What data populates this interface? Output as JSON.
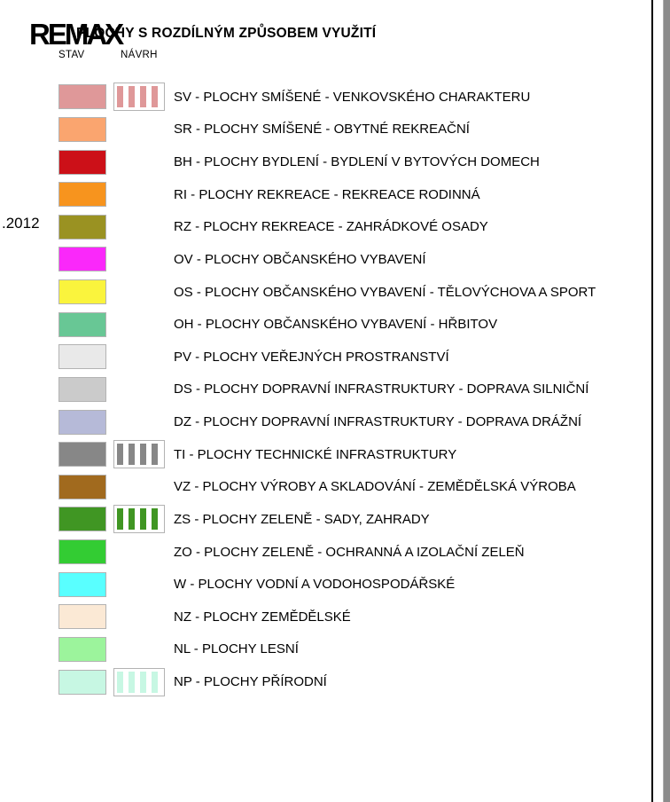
{
  "header": {
    "logo_text": "REMAX",
    "title": "PLOCHY S ROZDÍLNÝM ZPŮSOBEM VYUŽITÍ",
    "column_stav": "STAV",
    "column_navrh": "NÁVRH"
  },
  "side_note": ".2012",
  "legend": {
    "rows": [
      {
        "label": "SV - PLOCHY SMÍŠENÉ - VENKOVSKÉHO CHARAKTERU",
        "color": "#DF9899",
        "navrh_striped": true
      },
      {
        "label": "SR - PLOCHY SMÍŠENÉ -  OBYTNÉ REKREAČNÍ",
        "color": "#FAA56F",
        "navrh_striped": false
      },
      {
        "label": "BH - PLOCHY BYDLENÍ - BYDLENÍ V BYTOVÝCH DOMECH",
        "color": "#CC1018",
        "navrh_striped": false
      },
      {
        "label": "RI - PLOCHY REKREACE - REKREACE RODINNÁ",
        "color": "#F7941E",
        "navrh_striped": false
      },
      {
        "label": "RZ - PLOCHY REKREACE - ZAHRÁDKOVÉ OSADY",
        "color": "#9A9222",
        "navrh_striped": false
      },
      {
        "label": "OV - PLOCHY OBČANSKÉHO VYBAVENÍ",
        "color": "#FA28FA",
        "navrh_striped": false
      },
      {
        "label": "OS - PLOCHY OBČANSKÉHO VYBAVENÍ - TĚLOVÝCHOVA A SPORT",
        "color": "#FAF43D",
        "navrh_striped": false
      },
      {
        "label": "OH - PLOCHY OBČANSKÉHO VYBAVENÍ - HŘBITOV",
        "color": "#68C795",
        "navrh_striped": false
      },
      {
        "label": "PV - PLOCHY VEŘEJNÝCH PROSTRANSTVÍ",
        "color": "#E9E9E9",
        "navrh_striped": false
      },
      {
        "label": "DS - PLOCHY DOPRAVNÍ INFRASTRUKTURY - DOPRAVA SILNIČNÍ",
        "color": "#CBCBCB",
        "navrh_striped": false
      },
      {
        "label": "DZ - PLOCHY DOPRAVNÍ INFRASTRUKTURY - DOPRAVA DRÁŽNÍ",
        "color": "#B6BAD8",
        "navrh_striped": false
      },
      {
        "label": "TI - PLOCHY TECHNICKÉ INFRASTRUKTURY",
        "color": "#878787",
        "navrh_striped": true
      },
      {
        "label": "VZ - PLOCHY VÝROBY A SKLADOVÁNÍ - ZEMĚDĚLSKÁ VÝROBA",
        "color": "#A16A1E",
        "navrh_striped": false
      },
      {
        "label": "ZS - PLOCHY ZELENĚ - SADY, ZAHRADY",
        "color": "#409623",
        "navrh_striped": true
      },
      {
        "label": "ZO - PLOCHY ZELENĚ - OCHRANNÁ A IZOLAČNÍ ZELEŇ",
        "color": "#33CC33",
        "navrh_striped": false
      },
      {
        "label": "W - PLOCHY VODNÍ A VODOHOSPODÁŘSKÉ",
        "color": "#59FFFF",
        "navrh_striped": false
      },
      {
        "label": "NZ - PLOCHY ZEMĚDĚLSKÉ",
        "color": "#FBE9D5",
        "navrh_striped": false
      },
      {
        "label": "NL - PLOCHY LESNÍ",
        "color": "#9CF49C",
        "navrh_striped": false
      },
      {
        "label": "NP - PLOCHY PŘÍRODNÍ",
        "color": "#C7F7E3",
        "navrh_striped": true
      }
    ]
  }
}
